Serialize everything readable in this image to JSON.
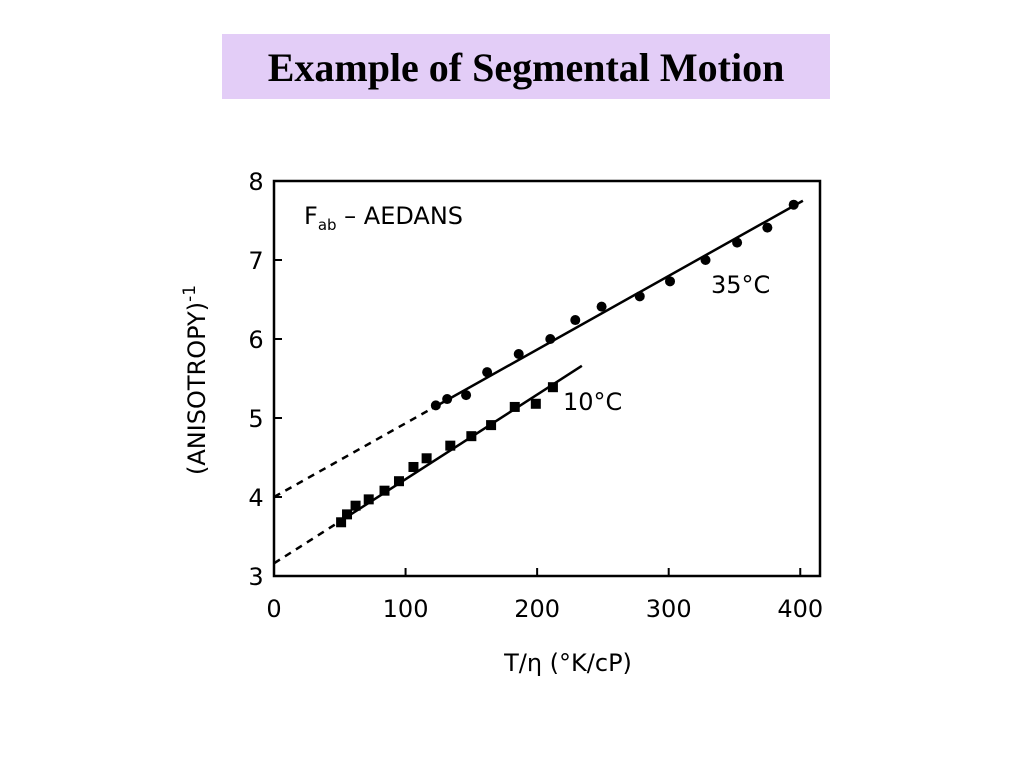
{
  "chart_data": {
    "type": "scatter",
    "title": "Example of Segmental Motion",
    "x_label": "T/η  (°K/cP)",
    "y_label": {
      "text": "(ANISOTROPY)",
      "superscript": "-1"
    },
    "annotation": {
      "text": "F",
      "subscript": "ab",
      "rest": " – AEDANS"
    },
    "xlim": [
      0,
      415
    ],
    "ylim": [
      3,
      8
    ],
    "xticks": [
      0,
      100,
      200,
      300,
      400
    ],
    "yticks": [
      3,
      4,
      5,
      6,
      7,
      8
    ],
    "series": [
      {
        "name": "35°C",
        "color": "#000000",
        "marker": "circle",
        "x": [
          123,
          131.6,
          146,
          162,
          186,
          210,
          229,
          249,
          278,
          301,
          328,
          352,
          375,
          395
        ],
        "values": [
          5.16,
          5.24,
          5.29,
          5.58,
          5.81,
          6.0,
          6.24,
          6.41,
          6.54,
          6.73,
          7.0,
          7.22,
          7.41,
          7.7
        ],
        "fit_dashed": {
          "x": [
            0,
            120
          ],
          "y": [
            4.0,
            5.12
          ]
        },
        "fit_solid": {
          "x": [
            120,
            402
          ],
          "y": [
            5.12,
            7.75
          ]
        }
      },
      {
        "name": "10°C",
        "color": "#000000",
        "marker": "square",
        "x": [
          51,
          55.5,
          62,
          72,
          84,
          95,
          106,
          116,
          134,
          150,
          165,
          183,
          199,
          212
        ],
        "values": [
          3.68,
          3.78,
          3.89,
          3.97,
          4.08,
          4.2,
          4.38,
          4.49,
          4.65,
          4.77,
          4.91,
          5.14,
          5.18,
          5.39
        ],
        "fit_dashed": {
          "x": [
            0,
            50
          ],
          "y": [
            3.16,
            3.69
          ]
        },
        "fit_solid": {
          "x": [
            50,
            234
          ],
          "y": [
            3.69,
            5.66
          ]
        }
      }
    ]
  }
}
